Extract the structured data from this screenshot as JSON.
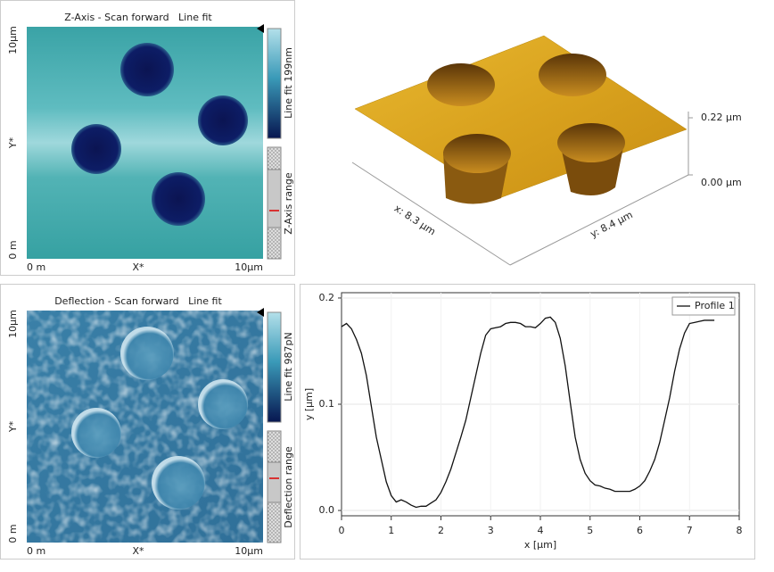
{
  "panels": [
    {
      "title": "Z-Axis - Scan forward   Line fit",
      "y_top": "10µm",
      "y_mid": "Y*",
      "y_bottom": "0 m",
      "x_left": "0 m",
      "x_mid": "X*",
      "x_right": "10µm",
      "colorbar_label": "Line fit 199nm",
      "range_label": "Z-Axis range"
    },
    {
      "title": "Deflection - Scan forward   Line fit",
      "y_top": "10µm",
      "y_mid": "Y*",
      "y_bottom": "0 m",
      "x_left": "0 m",
      "x_mid": "X*",
      "x_right": "10µm",
      "colorbar_label": "Line fit 987pN",
      "range_label": "Deflection range"
    }
  ],
  "render3d": {
    "z_top": "0.22 µm",
    "z_bottom": "0.00 µm",
    "x_label": "x: 8.3 µm",
    "y_label": "y: 8.4 µm"
  },
  "chart_data": {
    "type": "line",
    "xlabel": "x [µm]",
    "ylabel": "y [µm]",
    "x": [
      0,
      0.1,
      0.2,
      0.3,
      0.4,
      0.5,
      0.6,
      0.7,
      0.8,
      0.9,
      1.0,
      1.1,
      1.2,
      1.3,
      1.4,
      1.5,
      1.6,
      1.7,
      1.8,
      1.9,
      2.0,
      2.1,
      2.2,
      2.3,
      2.4,
      2.5,
      2.6,
      2.7,
      2.8,
      2.9,
      3.0,
      3.1,
      3.2,
      3.3,
      3.4,
      3.5,
      3.6,
      3.7,
      3.8,
      3.9,
      4.0,
      4.1,
      4.2,
      4.3,
      4.4,
      4.5,
      4.6,
      4.7,
      4.8,
      4.9,
      5.0,
      5.1,
      5.2,
      5.3,
      5.4,
      5.5,
      5.6,
      5.7,
      5.8,
      5.9,
      6.0,
      6.1,
      6.2,
      6.3,
      6.4,
      6.5,
      6.6,
      6.7,
      6.8,
      6.9,
      7.0,
      7.1,
      7.2,
      7.3,
      7.4,
      7.5
    ],
    "series": [
      {
        "name": "Profile 1",
        "color": "#111111",
        "values": [
          0.173,
          0.176,
          0.171,
          0.161,
          0.148,
          0.127,
          0.098,
          0.069,
          0.048,
          0.027,
          0.014,
          0.008,
          0.01,
          0.008,
          0.005,
          0.003,
          0.004,
          0.004,
          0.007,
          0.01,
          0.017,
          0.027,
          0.039,
          0.054,
          0.069,
          0.085,
          0.106,
          0.127,
          0.148,
          0.165,
          0.171,
          0.172,
          0.173,
          0.176,
          0.177,
          0.177,
          0.176,
          0.173,
          0.173,
          0.172,
          0.176,
          0.181,
          0.182,
          0.177,
          0.162,
          0.136,
          0.102,
          0.069,
          0.048,
          0.035,
          0.028,
          0.024,
          0.023,
          0.021,
          0.02,
          0.018,
          0.018,
          0.018,
          0.018,
          0.02,
          0.023,
          0.028,
          0.037,
          0.048,
          0.064,
          0.085,
          0.106,
          0.131,
          0.152,
          0.167,
          0.176,
          0.177,
          0.178,
          0.179,
          0.179,
          0.179
        ]
      }
    ],
    "xlim": [
      0,
      8
    ],
    "xticks": [
      0,
      1,
      2,
      3,
      4,
      5,
      6,
      7,
      8
    ],
    "ylim": [
      -0.005,
      0.205
    ],
    "yticks": [
      {
        "value": 0,
        "label": "0.0"
      },
      0.1,
      0.2
    ],
    "grid": true,
    "legend": "top-right"
  }
}
